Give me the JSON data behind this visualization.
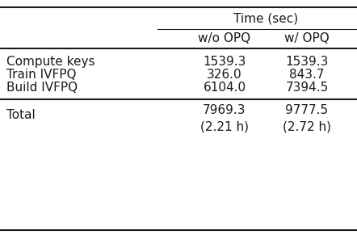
{
  "title": "Time (sec)",
  "col_headers": [
    "w/o OPQ",
    "w/ OPQ"
  ],
  "rows": [
    {
      "label": "Compute keys",
      "values": [
        "1539.3",
        "1539.3"
      ]
    },
    {
      "label": "Train IVFPQ",
      "values": [
        "326.0",
        "843.7"
      ]
    },
    {
      "label": "Build IVFPQ",
      "values": [
        "6104.0",
        "7394.5"
      ]
    }
  ],
  "total_row": {
    "label": "Total",
    "val1_line1": "7969.3",
    "val1_line2": "(2.21 h)",
    "val2_line1": "9777.5",
    "val2_line2": "(2.72 h)"
  },
  "bg_color": "#ffffff",
  "text_color": "#1a1a1a",
  "font_size": 11
}
